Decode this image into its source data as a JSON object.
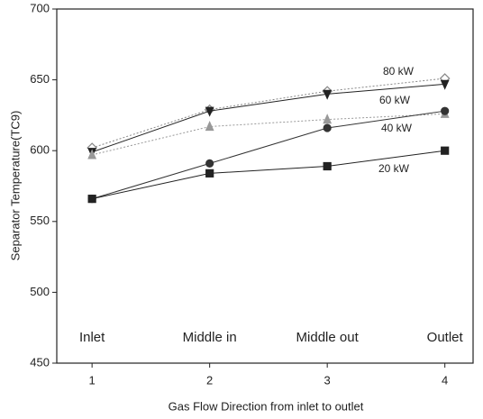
{
  "chart_data": {
    "type": "line",
    "x_label": "Gas Flow Direction from inlet to outlet",
    "y_label": "Separator Temperature(TC9)",
    "x": [
      1,
      2,
      3,
      4
    ],
    "xlim": [
      0.7,
      4.24
    ],
    "ylim": [
      450,
      700
    ],
    "xticks": [
      1,
      2,
      3,
      4
    ],
    "yticks": [
      450,
      500,
      550,
      600,
      650,
      700
    ],
    "annotations": [
      "Inlet",
      "Middle in",
      "Middle out",
      "Outlet"
    ],
    "series": [
      {
        "name": "80 kW",
        "color": "#888888",
        "marker": "diamond-open",
        "dashed": true,
        "values": [
          602,
          629,
          642,
          651
        ]
      },
      {
        "name": "60 kW",
        "color": "#222222",
        "marker": "triangle-down",
        "dashed": false,
        "values": [
          599,
          628,
          640,
          647
        ]
      },
      {
        "color": "#999999",
        "marker": "triangle-up",
        "dashed": true,
        "values": [
          597,
          617,
          622,
          626
        ]
      },
      {
        "name": "40 kW",
        "color": "#333333",
        "marker": "circle",
        "dashed": false,
        "values": [
          566,
          591,
          616,
          628
        ]
      },
      {
        "name": "20 kW",
        "color": "#222222",
        "marker": "square",
        "dashed": false,
        "values": [
          566,
          584,
          589,
          600
        ]
      }
    ]
  }
}
